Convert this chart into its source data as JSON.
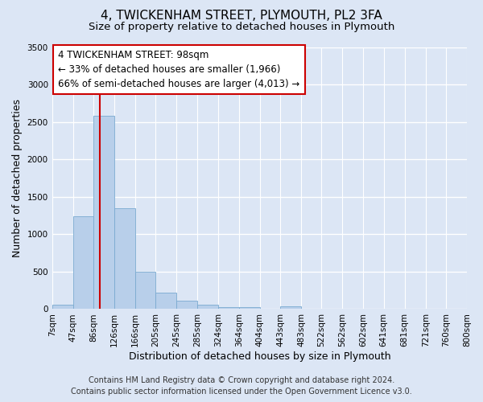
{
  "title_line1": "4, TWICKENHAM STREET, PLYMOUTH, PL2 3FA",
  "title_line2": "Size of property relative to detached houses in Plymouth",
  "xlabel": "Distribution of detached houses by size in Plymouth",
  "ylabel": "Number of detached properties",
  "bin_labels": [
    "7sqm",
    "47sqm",
    "86sqm",
    "126sqm",
    "166sqm",
    "205sqm",
    "245sqm",
    "285sqm",
    "324sqm",
    "364sqm",
    "404sqm",
    "443sqm",
    "483sqm",
    "522sqm",
    "562sqm",
    "602sqm",
    "641sqm",
    "681sqm",
    "721sqm",
    "760sqm",
    "800sqm"
  ],
  "bin_edges": [
    7,
    47,
    86,
    126,
    166,
    205,
    245,
    285,
    324,
    364,
    404,
    443,
    483,
    522,
    562,
    602,
    641,
    681,
    721,
    760,
    800
  ],
  "bar_heights": [
    55,
    1240,
    2590,
    1350,
    500,
    215,
    110,
    55,
    30,
    30,
    0,
    35,
    0,
    0,
    0,
    0,
    0,
    0,
    0,
    0
  ],
  "bar_color": "#b8cfea",
  "bar_edge_color": "#7aaad0",
  "vline_x": 98,
  "vline_color": "#cc0000",
  "ylim": [
    0,
    3500
  ],
  "yticks": [
    0,
    500,
    1000,
    1500,
    2000,
    2500,
    3000,
    3500
  ],
  "annotation_text_line1": "4 TWICKENHAM STREET: 98sqm",
  "annotation_text_line2": "← 33% of detached houses are smaller (1,966)",
  "annotation_text_line3": "66% of semi-detached houses are larger (4,013) →",
  "annotation_box_facecolor": "#ffffff",
  "annotation_box_edgecolor": "#cc0000",
  "footer_line1": "Contains HM Land Registry data © Crown copyright and database right 2024.",
  "footer_line2": "Contains public sector information licensed under the Open Government Licence v3.0.",
  "background_color": "#dce6f5",
  "plot_background_color": "#dce6f5",
  "grid_color": "#ffffff",
  "title_fontsize": 11,
  "subtitle_fontsize": 9.5,
  "axis_label_fontsize": 9,
  "tick_fontsize": 7.5,
  "footer_fontsize": 7,
  "annotation_fontsize": 8.5
}
